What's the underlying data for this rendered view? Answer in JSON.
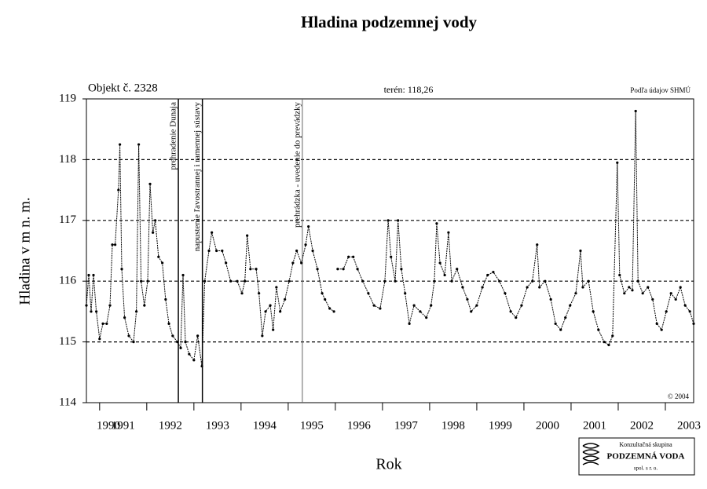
{
  "chart_data": {
    "type": "line",
    "title": "Hladina podzemnej vody",
    "subtitle_left": "Objekt č. 2328",
    "subtitle_center": "terén: 118,26",
    "source": "Podľa údajov SHMÚ",
    "copyright": "© 2004",
    "x_label": "Rok",
    "y_label": "Hladina v m n. m.",
    "logo": {
      "line1": "Konzultačná skupina",
      "line2": "PODZEMNÁ VODA",
      "line3": "spol. s r. o."
    },
    "xlim": [
      1990.72,
      2003.6
    ],
    "ylim": [
      114,
      119
    ],
    "xticks": [
      1990,
      1991,
      1992,
      1993,
      1994,
      1995,
      1996,
      1997,
      1998,
      1999,
      2000,
      2001,
      2002,
      2003
    ],
    "yticks": [
      114,
      115,
      116,
      117,
      118,
      119
    ],
    "grid": true,
    "events": [
      {
        "x": 1992.67,
        "label": "prehradenie Dunaja"
      },
      {
        "x": 1993.18,
        "label": "napustenie ľavostrannej i ramennej sústavy"
      },
      {
        "x": 1995.3,
        "label": "prehrádzka - uvedenie do prevádzky"
      }
    ],
    "series": [
      {
        "color": "#000000",
        "x": [
          1990.72,
          1990.77,
          1990.82,
          1990.87,
          1990.93,
          1991.0,
          1991.07,
          1991.15,
          1991.22,
          1991.27,
          1991.33,
          1991.4,
          1991.43,
          1991.47,
          1991.53,
          1991.62,
          1991.72,
          1991.78,
          1991.83,
          1991.88,
          1991.95,
          1992.02,
          1992.07,
          1992.13,
          1992.18,
          1992.25,
          1992.33,
          1992.4,
          1992.47,
          1992.55,
          1992.65,
          1992.72,
          1992.77,
          1992.82,
          1992.9,
          1993.0,
          1993.08,
          1993.17,
          1993.23,
          1993.32,
          1993.38,
          1993.48,
          1993.6,
          1993.68,
          1993.78,
          1993.92,
          1994.02,
          1994.08,
          1994.13,
          1994.2,
          1994.32,
          1994.38,
          1994.45,
          1994.52,
          1994.62,
          1994.68,
          1994.75,
          1994.83,
          1994.93,
          1995.02,
          1995.1,
          1995.18,
          1995.28,
          1995.37,
          1995.43,
          1995.52,
          1995.62,
          1995.72,
          1995.78,
          1995.88,
          1995.97,
          1996.01,
          1996.05,
          1996.17,
          1996.28,
          1996.38,
          1996.47,
          1996.58,
          1996.7,
          1996.82,
          1996.95,
          1997.05,
          1997.12,
          1997.18,
          1997.27,
          1997.33,
          1997.4,
          1997.48,
          1997.57,
          1997.67,
          1997.8,
          1997.93,
          1998.03,
          1998.1,
          1998.15,
          1998.22,
          1998.32,
          1998.4,
          1998.47,
          1998.58,
          1998.7,
          1998.8,
          1998.88,
          1999.0,
          1999.12,
          1999.23,
          1999.35,
          1999.48,
          1999.6,
          1999.72,
          1999.83,
          1999.95,
          2000.07,
          2000.18,
          2000.28,
          2000.33,
          2000.45,
          2000.57,
          2000.67,
          2000.78,
          2000.88,
          2000.98,
          2001.1,
          2001.2,
          2001.25,
          2001.37,
          2001.47,
          2001.58,
          2001.7,
          2001.8,
          2001.88,
          2001.98,
          2002.03,
          2002.13,
          2002.23,
          2002.3,
          2002.37,
          2002.42,
          2002.52,
          2002.63,
          2002.73,
          2002.82,
          2002.92,
          2003.02,
          2003.12,
          2003.22,
          2003.32,
          2003.42,
          2003.52,
          2003.6
        ],
        "values": [
          115.6,
          116.1,
          115.5,
          116.1,
          115.5,
          115.05,
          115.3,
          115.3,
          115.6,
          116.6,
          116.6,
          117.5,
          118.25,
          116.2,
          115.4,
          115.1,
          115.0,
          115.5,
          118.25,
          116.0,
          115.6,
          116.0,
          117.6,
          116.8,
          117.0,
          116.4,
          116.3,
          115.7,
          115.3,
          115.1,
          115.0,
          114.9,
          116.1,
          115.0,
          114.8,
          114.7,
          115.1,
          114.6,
          116.0,
          116.5,
          116.8,
          116.5,
          116.5,
          116.3,
          116.0,
          116.0,
          115.8,
          116.0,
          116.75,
          116.2,
          116.2,
          115.8,
          115.1,
          115.5,
          115.6,
          115.2,
          115.9,
          115.5,
          115.7,
          116.0,
          116.3,
          116.5,
          116.3,
          116.6,
          116.9,
          116.5,
          116.2,
          115.8,
          115.7,
          115.55,
          115.5,
          null,
          116.2,
          116.2,
          116.4,
          116.4,
          116.2,
          116.0,
          115.8,
          115.6,
          115.55,
          116.0,
          117.0,
          116.4,
          116.0,
          117.0,
          116.2,
          115.8,
          115.3,
          115.6,
          115.5,
          115.4,
          115.6,
          116.0,
          116.95,
          116.3,
          116.1,
          116.8,
          116.0,
          116.2,
          115.9,
          115.7,
          115.5,
          115.6,
          115.9,
          116.1,
          116.15,
          116.0,
          115.8,
          115.5,
          115.4,
          115.6,
          115.9,
          116.0,
          116.6,
          115.9,
          116.0,
          115.7,
          115.3,
          115.2,
          115.4,
          115.6,
          115.8,
          116.5,
          115.9,
          116.0,
          115.5,
          115.2,
          115.0,
          114.95,
          115.1,
          117.95,
          116.1,
          115.8,
          115.9,
          115.85,
          118.8,
          116.0,
          115.8,
          115.9,
          115.7,
          115.3,
          115.2,
          115.5,
          115.8,
          115.7,
          115.9,
          115.6,
          115.5,
          115.3
        ]
      }
    ]
  }
}
